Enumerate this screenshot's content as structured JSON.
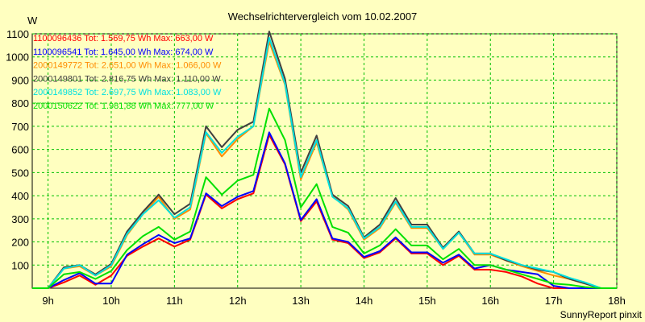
{
  "chart_data": {
    "type": "line",
    "title": "Wechselrichtervergleich vom 10.02.2007",
    "ylabel": "W",
    "xlabel": "",
    "footer": "SunnyReport pinxit",
    "x_ticks": [
      "9h",
      "10h",
      "11h",
      "12h",
      "13h",
      "14h",
      "15h",
      "16h",
      "17h",
      "18h"
    ],
    "y_ticks": [
      100,
      200,
      300,
      400,
      500,
      600,
      700,
      800,
      900,
      1000,
      1100
    ],
    "xlim": [
      8.75,
      18.0
    ],
    "ylim": [
      0,
      1100
    ],
    "grid": true,
    "legend_position": "top-left",
    "x_hours": [
      8.75,
      9.0,
      9.25,
      9.5,
      9.75,
      10.0,
      10.25,
      10.5,
      10.75,
      11.0,
      11.25,
      11.5,
      11.75,
      12.0,
      12.25,
      12.5,
      12.75,
      13.0,
      13.25,
      13.5,
      13.75,
      14.0,
      14.25,
      14.5,
      14.75,
      15.0,
      15.25,
      15.5,
      15.75,
      16.0,
      16.25,
      16.5,
      16.75,
      17.0,
      17.25,
      17.5,
      17.75,
      18.0
    ],
    "series": [
      {
        "id": "1100096436",
        "label": "1100096436 Tot: 1.569,75 Wh Max: 663,00 W",
        "color": "#ff0000",
        "values": [
          0,
          0,
          25,
          55,
          15,
          55,
          140,
          180,
          215,
          180,
          210,
          405,
          345,
          385,
          410,
          663,
          535,
          290,
          375,
          210,
          195,
          130,
          155,
          215,
          150,
          150,
          100,
          140,
          80,
          80,
          70,
          50,
          20,
          0,
          0,
          0,
          0,
          0
        ]
      },
      {
        "id": "1100096541",
        "label": "1100096541 Tot: 1.645,00 Wh Max: 674,00 W",
        "color": "#0000ff",
        "values": [
          0,
          0,
          35,
          65,
          20,
          20,
          145,
          190,
          230,
          195,
          215,
          410,
          355,
          395,
          420,
          674,
          540,
          295,
          385,
          215,
          200,
          135,
          160,
          220,
          155,
          155,
          110,
          145,
          85,
          100,
          80,
          70,
          60,
          10,
          0,
          0,
          0,
          0
        ]
      },
      {
        "id": "2000149772",
        "label": "2000149772 Tot: 2.651,00 Wh Max: 1.066,00 W",
        "color": "#ff8c00",
        "values": [
          0,
          0,
          85,
          95,
          55,
          95,
          230,
          320,
          395,
          300,
          340,
          670,
          570,
          645,
          700,
          1066,
          880,
          470,
          630,
          400,
          340,
          210,
          260,
          370,
          260,
          260,
          170,
          240,
          145,
          145,
          120,
          95,
          75,
          55,
          40,
          20,
          0,
          0
        ]
      },
      {
        "id": "2000149801",
        "label": "2000149801 Tot: 2.816,75 Wh Max: 1.110,00 W",
        "color": "#404040",
        "values": [
          0,
          0,
          90,
          100,
          60,
          105,
          245,
          330,
          405,
          320,
          365,
          700,
          610,
          685,
          720,
          1110,
          905,
          500,
          660,
          405,
          355,
          220,
          275,
          390,
          275,
          275,
          175,
          245,
          150,
          150,
          120,
          100,
          80,
          70,
          40,
          20,
          0,
          0
        ]
      },
      {
        "id": "2000149852",
        "label": "2000149852 Tot: 2.697,75 Wh Max: 1.083,00 W",
        "color": "#00e0e0",
        "values": [
          0,
          0,
          85,
          100,
          55,
          100,
          235,
          320,
          380,
          305,
          350,
          675,
          585,
          655,
          700,
          1083,
          885,
          480,
          640,
          395,
          345,
          215,
          265,
          375,
          265,
          265,
          170,
          240,
          150,
          150,
          125,
          100,
          85,
          70,
          45,
          25,
          0,
          0
        ]
      },
      {
        "id": "2000150622",
        "label": "2000150622 Tot: 1.981,88 Wh Max: 777,00 W",
        "color": "#00e000",
        "values": [
          0,
          0,
          60,
          70,
          40,
          75,
          165,
          225,
          265,
          210,
          245,
          480,
          405,
          465,
          490,
          777,
          640,
          350,
          450,
          265,
          240,
          150,
          185,
          255,
          185,
          185,
          125,
          170,
          100,
          100,
          80,
          60,
          40,
          20,
          15,
          5,
          0,
          0
        ]
      }
    ]
  }
}
